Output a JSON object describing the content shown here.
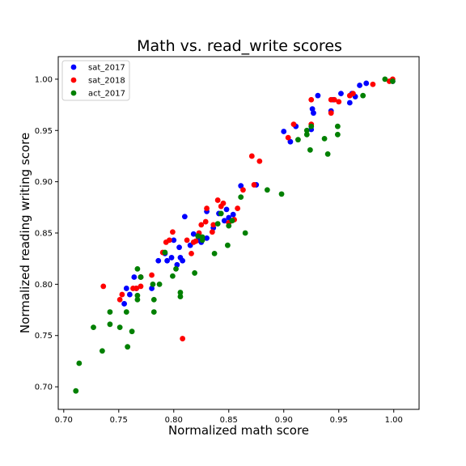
{
  "chart_data": {
    "type": "scatter",
    "title": "Math vs. read_write scores",
    "xlabel": "Normalized math score",
    "ylabel": "Normalized reading writing score",
    "xlim": [
      0.695,
      1.023
    ],
    "ylim": [
      0.678,
      1.022
    ],
    "xticks": [
      0.7,
      0.75,
      0.8,
      0.85,
      0.9,
      0.95,
      1.0
    ],
    "xtick_labels": [
      "0.70",
      "0.75",
      "0.80",
      "0.85",
      "0.90",
      "0.95",
      "1.00"
    ],
    "yticks": [
      0.7,
      0.75,
      0.8,
      0.85,
      0.9,
      0.95,
      1.0
    ],
    "ytick_labels": [
      "0.70",
      "0.75",
      "0.80",
      "0.85",
      "0.90",
      "0.95",
      "1.00"
    ],
    "grid": false,
    "legend_position": "upper-left",
    "series": [
      {
        "name": "sat_2017",
        "color": "#0000ff",
        "points": [
          [
            0.755,
            0.781
          ],
          [
            0.757,
            0.796
          ],
          [
            0.76,
            0.79
          ],
          [
            0.764,
            0.807
          ],
          [
            0.766,
            0.796
          ],
          [
            0.77,
            0.807
          ],
          [
            0.78,
            0.796
          ],
          [
            0.786,
            0.823
          ],
          [
            0.792,
            0.83
          ],
          [
            0.794,
            0.823
          ],
          [
            0.798,
            0.826
          ],
          [
            0.8,
            0.843
          ],
          [
            0.803,
            0.819
          ],
          [
            0.805,
            0.836
          ],
          [
            0.806,
            0.826
          ],
          [
            0.808,
            0.823
          ],
          [
            0.81,
            0.866
          ],
          [
            0.815,
            0.838
          ],
          [
            0.818,
            0.849
          ],
          [
            0.822,
            0.843
          ],
          [
            0.825,
            0.841
          ],
          [
            0.83,
            0.871
          ],
          [
            0.83,
            0.845
          ],
          [
            0.836,
            0.855
          ],
          [
            0.841,
            0.869
          ],
          [
            0.846,
            0.862
          ],
          [
            0.848,
            0.873
          ],
          [
            0.85,
            0.865
          ],
          [
            0.854,
            0.868
          ],
          [
            0.861,
            0.896
          ],
          [
            0.875,
            0.897
          ],
          [
            0.9,
            0.949
          ],
          [
            0.906,
            0.939
          ],
          [
            0.911,
            0.954
          ],
          [
            0.925,
            0.951
          ],
          [
            0.926,
            0.971
          ],
          [
            0.927,
            0.967
          ],
          [
            0.931,
            0.984
          ],
          [
            0.943,
            0.969
          ],
          [
            0.945,
            0.98
          ],
          [
            0.952,
            0.986
          ],
          [
            0.96,
            0.977
          ],
          [
            0.962,
            0.986
          ],
          [
            0.965,
            0.983
          ],
          [
            0.969,
            0.994
          ],
          [
            0.975,
            0.996
          ],
          [
            0.999,
            0.998
          ]
        ]
      },
      {
        "name": "sat_2018",
        "color": "#ff0000",
        "points": [
          [
            0.736,
            0.798
          ],
          [
            0.751,
            0.785
          ],
          [
            0.753,
            0.79
          ],
          [
            0.763,
            0.796
          ],
          [
            0.766,
            0.796
          ],
          [
            0.77,
            0.798
          ],
          [
            0.77,
            0.807
          ],
          [
            0.78,
            0.809
          ],
          [
            0.79,
            0.831
          ],
          [
            0.793,
            0.841
          ],
          [
            0.796,
            0.843
          ],
          [
            0.799,
            0.851
          ],
          [
            0.808,
            0.747
          ],
          [
            0.812,
            0.843
          ],
          [
            0.816,
            0.83
          ],
          [
            0.818,
            0.841
          ],
          [
            0.82,
            0.842
          ],
          [
            0.823,
            0.85
          ],
          [
            0.825,
            0.858
          ],
          [
            0.829,
            0.861
          ],
          [
            0.83,
            0.874
          ],
          [
            0.835,
            0.851
          ],
          [
            0.836,
            0.858
          ],
          [
            0.84,
            0.882
          ],
          [
            0.843,
            0.876
          ],
          [
            0.845,
            0.879
          ],
          [
            0.85,
            0.86
          ],
          [
            0.855,
            0.863
          ],
          [
            0.858,
            0.874
          ],
          [
            0.863,
            0.892
          ],
          [
            0.871,
            0.925
          ],
          [
            0.873,
            0.897
          ],
          [
            0.878,
            0.92
          ],
          [
            0.904,
            0.943
          ],
          [
            0.909,
            0.956
          ],
          [
            0.925,
            0.98
          ],
          [
            0.925,
            0.956
          ],
          [
            0.943,
            0.98
          ],
          [
            0.943,
            0.967
          ],
          [
            0.946,
            0.98
          ],
          [
            0.95,
            0.978
          ],
          [
            0.96,
            0.984
          ],
          [
            0.963,
            0.986
          ],
          [
            0.981,
            0.995
          ],
          [
            0.996,
            0.998
          ],
          [
            0.999,
            1.0
          ]
        ]
      },
      {
        "name": "act_2017",
        "color": "#008000",
        "points": [
          [
            0.711,
            0.696
          ],
          [
            0.714,
            0.723
          ],
          [
            0.727,
            0.758
          ],
          [
            0.735,
            0.735
          ],
          [
            0.742,
            0.773
          ],
          [
            0.742,
            0.761
          ],
          [
            0.751,
            0.758
          ],
          [
            0.757,
            0.773
          ],
          [
            0.758,
            0.739
          ],
          [
            0.762,
            0.754
          ],
          [
            0.767,
            0.815
          ],
          [
            0.767,
            0.789
          ],
          [
            0.767,
            0.785
          ],
          [
            0.77,
            0.807
          ],
          [
            0.781,
            0.8
          ],
          [
            0.782,
            0.785
          ],
          [
            0.782,
            0.773
          ],
          [
            0.787,
            0.8
          ],
          [
            0.792,
            0.831
          ],
          [
            0.799,
            0.808
          ],
          [
            0.802,
            0.815
          ],
          [
            0.806,
            0.792
          ],
          [
            0.806,
            0.788
          ],
          [
            0.819,
            0.811
          ],
          [
            0.822,
            0.847
          ],
          [
            0.826,
            0.846
          ],
          [
            0.826,
            0.843
          ],
          [
            0.837,
            0.83
          ],
          [
            0.84,
            0.859
          ],
          [
            0.843,
            0.869
          ],
          [
            0.849,
            0.838
          ],
          [
            0.85,
            0.857
          ],
          [
            0.853,
            0.862
          ],
          [
            0.861,
            0.885
          ],
          [
            0.865,
            0.85
          ],
          [
            0.885,
            0.892
          ],
          [
            0.898,
            0.888
          ],
          [
            0.913,
            0.941
          ],
          [
            0.921,
            0.95
          ],
          [
            0.921,
            0.946
          ],
          [
            0.924,
            0.931
          ],
          [
            0.925,
            0.954
          ],
          [
            0.937,
            0.942
          ],
          [
            0.94,
            0.927
          ],
          [
            0.949,
            0.954
          ],
          [
            0.949,
            0.946
          ],
          [
            0.972,
            0.984
          ],
          [
            0.992,
            1.0
          ],
          [
            0.999,
            0.998
          ]
        ]
      }
    ]
  }
}
